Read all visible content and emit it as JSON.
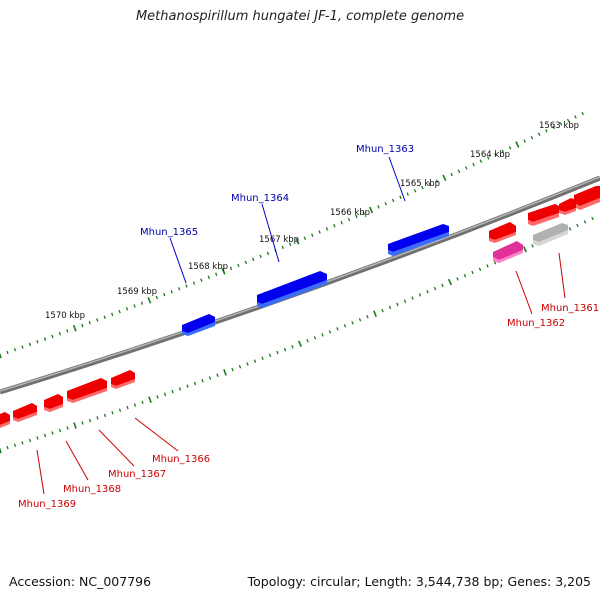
{
  "title": "Methanospirillum hungatei JF-1, complete genome",
  "footer": {
    "accession": "Accession: NC_007796",
    "summary": "Topology: circular; Length: 3,544,738 bp; Genes: 3,205"
  },
  "scale": {
    "labels": [
      "1563 kbp",
      "1564 kbp",
      "1565 kbp",
      "1566 kbp",
      "1567 kbp",
      "1568 kbp",
      "1569 kbp",
      "1570 kbp"
    ]
  },
  "genes": {
    "forward": [
      {
        "label": "Mhun_1363",
        "color": "#0000ee"
      },
      {
        "label": "Mhun_1364",
        "color": "#0000ee"
      },
      {
        "label": "Mhun_1365",
        "color": "#0000ee"
      }
    ],
    "reverse": [
      {
        "label": "Mhun_1361",
        "color": "#ee0000"
      },
      {
        "label": "Mhun_1362",
        "color": "#ee0000"
      },
      {
        "label": "Mhun_1366",
        "color": "#ee0000"
      },
      {
        "label": "Mhun_1367",
        "color": "#ee0000"
      },
      {
        "label": "Mhun_1368",
        "color": "#ee0000"
      },
      {
        "label": "Mhun_1369",
        "color": "#ee0000"
      }
    ]
  },
  "colors": {
    "backbone": "#808080",
    "tick": "#1a7a1a",
    "forward_gene": "#0000ee",
    "reverse_gene": "#ee0000",
    "pink_gene": "#e0309a",
    "grey_gene": "#b0b0b0"
  }
}
